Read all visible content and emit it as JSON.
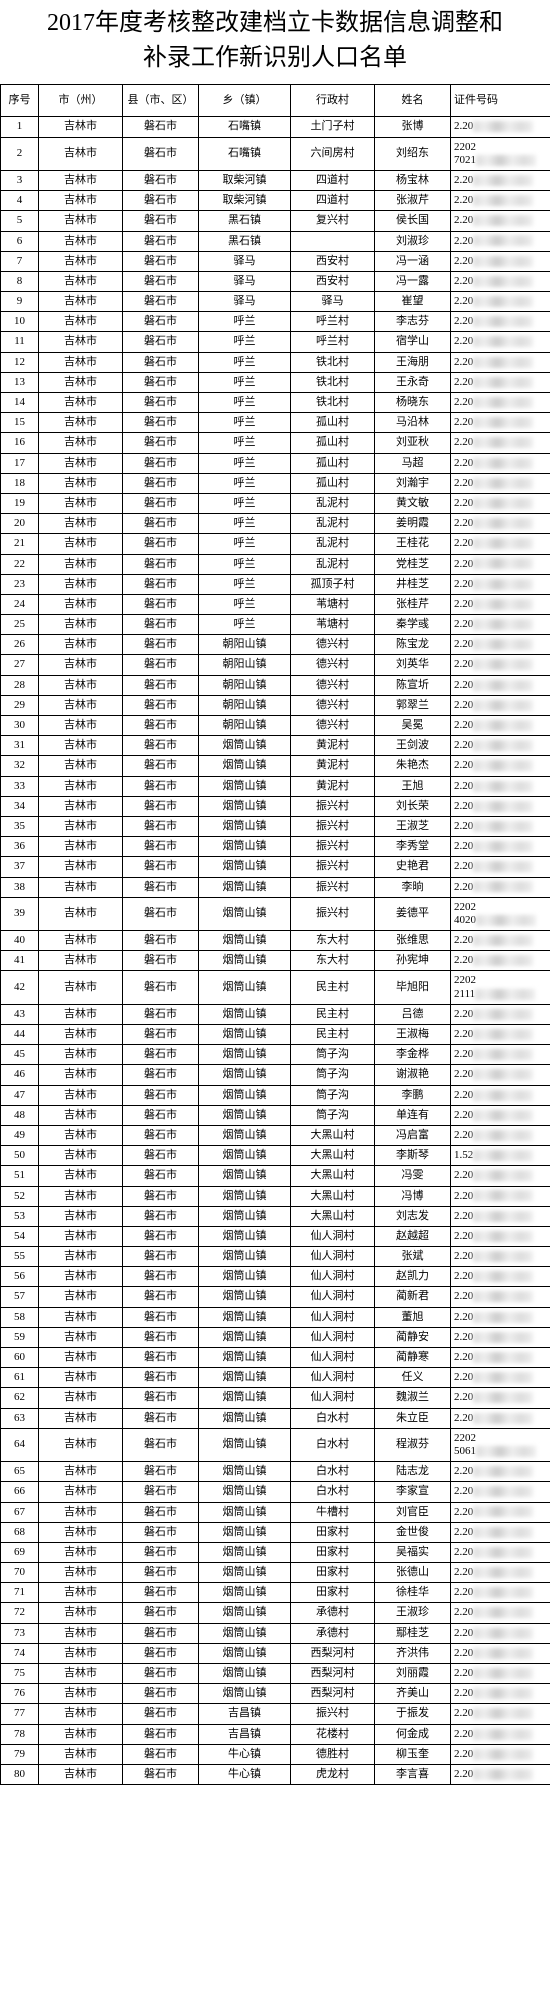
{
  "title_line1": "2017年度考核整改建档立卡数据信息调整和",
  "title_line2": "补录工作新识别人口名单",
  "headers": [
    "序号",
    "市（州）",
    "县（市、区）",
    "乡（镇）",
    "行政村",
    "姓名",
    "证件号码"
  ],
  "id_prefix_default": "2.20",
  "rows": [
    {
      "n": 1,
      "c": "吉林市",
      "x": "磐石市",
      "t": "石嘴镇",
      "v": "土门子村",
      "m": "张博",
      "i": "2.20"
    },
    {
      "n": 2,
      "c": "吉林市",
      "x": "磐石市",
      "t": "石嘴镇",
      "v": "六间房村",
      "m": "刘绍东",
      "i": "2202\n7021",
      "tall": true
    },
    {
      "n": 3,
      "c": "吉林市",
      "x": "磐石市",
      "t": "取柴河镇",
      "v": "四道村",
      "m": "杨宝林",
      "i": "2.20"
    },
    {
      "n": 4,
      "c": "吉林市",
      "x": "磐石市",
      "t": "取柴河镇",
      "v": "四道村",
      "m": "张淑芹",
      "i": "2.20"
    },
    {
      "n": 5,
      "c": "吉林市",
      "x": "磐石市",
      "t": "黑石镇",
      "v": "复兴村",
      "m": "侯长国",
      "i": "2.20"
    },
    {
      "n": 6,
      "c": "吉林市",
      "x": "磐石市",
      "t": "黑石镇",
      "v": "",
      "m": "刘淑珍",
      "i": "2.20"
    },
    {
      "n": 7,
      "c": "吉林市",
      "x": "磐石市",
      "t": "驿马",
      "v": "西安村",
      "m": "冯一涵",
      "i": "2.20"
    },
    {
      "n": 8,
      "c": "吉林市",
      "x": "磐石市",
      "t": "驿马",
      "v": "西安村",
      "m": "冯一露",
      "i": "2.20"
    },
    {
      "n": 9,
      "c": "吉林市",
      "x": "磐石市",
      "t": "驿马",
      "v": "驿马",
      "m": "崔望",
      "i": "2.20"
    },
    {
      "n": 10,
      "c": "吉林市",
      "x": "磐石市",
      "t": "呼兰",
      "v": "呼兰村",
      "m": "李志芬",
      "i": "2.20"
    },
    {
      "n": 11,
      "c": "吉林市",
      "x": "磐石市",
      "t": "呼兰",
      "v": "呼兰村",
      "m": "宿学山",
      "i": "2.20"
    },
    {
      "n": 12,
      "c": "吉林市",
      "x": "磐石市",
      "t": "呼兰",
      "v": "铁北村",
      "m": "王海朋",
      "i": "2.20"
    },
    {
      "n": 13,
      "c": "吉林市",
      "x": "磐石市",
      "t": "呼兰",
      "v": "铁北村",
      "m": "王永奇",
      "i": "2.20"
    },
    {
      "n": 14,
      "c": "吉林市",
      "x": "磐石市",
      "t": "呼兰",
      "v": "铁北村",
      "m": "杨晓东",
      "i": "2.20"
    },
    {
      "n": 15,
      "c": "吉林市",
      "x": "磐石市",
      "t": "呼兰",
      "v": "孤山村",
      "m": "马沿林",
      "i": "2.20"
    },
    {
      "n": 16,
      "c": "吉林市",
      "x": "磐石市",
      "t": "呼兰",
      "v": "孤山村",
      "m": "刘亚秋",
      "i": "2.20"
    },
    {
      "n": 17,
      "c": "吉林市",
      "x": "磐石市",
      "t": "呼兰",
      "v": "孤山村",
      "m": "马超",
      "i": "2.20"
    },
    {
      "n": 18,
      "c": "吉林市",
      "x": "磐石市",
      "t": "呼兰",
      "v": "孤山村",
      "m": "刘瀚宇",
      "i": "2.20"
    },
    {
      "n": 19,
      "c": "吉林市",
      "x": "磐石市",
      "t": "呼兰",
      "v": "乱泥村",
      "m": "黄文敏",
      "i": "2.20"
    },
    {
      "n": 20,
      "c": "吉林市",
      "x": "磐石市",
      "t": "呼兰",
      "v": "乱泥村",
      "m": "姜明霞",
      "i": "2.20"
    },
    {
      "n": 21,
      "c": "吉林市",
      "x": "磐石市",
      "t": "呼兰",
      "v": "乱泥村",
      "m": "王桂花",
      "i": "2.20"
    },
    {
      "n": 22,
      "c": "吉林市",
      "x": "磐石市",
      "t": "呼兰",
      "v": "乱泥村",
      "m": "党桂芝",
      "i": "2.20"
    },
    {
      "n": 23,
      "c": "吉林市",
      "x": "磐石市",
      "t": "呼兰",
      "v": "孤顶子村",
      "m": "井桂芝",
      "i": "2.20"
    },
    {
      "n": 24,
      "c": "吉林市",
      "x": "磐石市",
      "t": "呼兰",
      "v": "苇塘村",
      "m": "张桂芹",
      "i": "2.20"
    },
    {
      "n": 25,
      "c": "吉林市",
      "x": "磐石市",
      "t": "呼兰",
      "v": "苇塘村",
      "m": "秦学彧",
      "i": "2.20"
    },
    {
      "n": 26,
      "c": "吉林市",
      "x": "磐石市",
      "t": "朝阳山镇",
      "v": "德兴村",
      "m": "陈宝龙",
      "i": "2.20"
    },
    {
      "n": 27,
      "c": "吉林市",
      "x": "磐石市",
      "t": "朝阳山镇",
      "v": "德兴村",
      "m": "刘英华",
      "i": "2.20"
    },
    {
      "n": 28,
      "c": "吉林市",
      "x": "磐石市",
      "t": "朝阳山镇",
      "v": "德兴村",
      "m": "陈宣圻",
      "i": "2.20"
    },
    {
      "n": 29,
      "c": "吉林市",
      "x": "磐石市",
      "t": "朝阳山镇",
      "v": "德兴村",
      "m": "郭翠兰",
      "i": "2.20"
    },
    {
      "n": 30,
      "c": "吉林市",
      "x": "磐石市",
      "t": "朝阳山镇",
      "v": "德兴村",
      "m": "吴冕",
      "i": "2.20"
    },
    {
      "n": 31,
      "c": "吉林市",
      "x": "磐石市",
      "t": "烟筒山镇",
      "v": "黄泥村",
      "m": "王剑波",
      "i": "2.20"
    },
    {
      "n": 32,
      "c": "吉林市",
      "x": "磐石市",
      "t": "烟筒山镇",
      "v": "黄泥村",
      "m": "朱艳杰",
      "i": "2.20"
    },
    {
      "n": 33,
      "c": "吉林市",
      "x": "磐石市",
      "t": "烟筒山镇",
      "v": "黄泥村",
      "m": "王旭",
      "i": "2.20"
    },
    {
      "n": 34,
      "c": "吉林市",
      "x": "磐石市",
      "t": "烟筒山镇",
      "v": "振兴村",
      "m": "刘长荣",
      "i": "2.20"
    },
    {
      "n": 35,
      "c": "吉林市",
      "x": "磐石市",
      "t": "烟筒山镇",
      "v": "振兴村",
      "m": "王淑芝",
      "i": "2.20"
    },
    {
      "n": 36,
      "c": "吉林市",
      "x": "磐石市",
      "t": "烟筒山镇",
      "v": "振兴村",
      "m": "李秀堂",
      "i": "2.20"
    },
    {
      "n": 37,
      "c": "吉林市",
      "x": "磐石市",
      "t": "烟筒山镇",
      "v": "振兴村",
      "m": "史艳君",
      "i": "2.20"
    },
    {
      "n": 38,
      "c": "吉林市",
      "x": "磐石市",
      "t": "烟筒山镇",
      "v": "振兴村",
      "m": "李晌",
      "i": "2.20"
    },
    {
      "n": 39,
      "c": "吉林市",
      "x": "磐石市",
      "t": "烟筒山镇",
      "v": "振兴村",
      "m": "姜德平",
      "i": "2202\n4020",
      "tall": true
    },
    {
      "n": 40,
      "c": "吉林市",
      "x": "磐石市",
      "t": "烟筒山镇",
      "v": "东大村",
      "m": "张维思",
      "i": "2.20"
    },
    {
      "n": 41,
      "c": "吉林市",
      "x": "磐石市",
      "t": "烟筒山镇",
      "v": "东大村",
      "m": "孙宪坤",
      "i": "2.20"
    },
    {
      "n": 42,
      "c": "吉林市",
      "x": "磐石市",
      "t": "烟筒山镇",
      "v": "民主村",
      "m": "毕旭阳",
      "i": "2202\n2111",
      "tall": true
    },
    {
      "n": 43,
      "c": "吉林市",
      "x": "磐石市",
      "t": "烟筒山镇",
      "v": "民主村",
      "m": "吕德",
      "i": "2.20"
    },
    {
      "n": 44,
      "c": "吉林市",
      "x": "磐石市",
      "t": "烟筒山镇",
      "v": "民主村",
      "m": "王淑梅",
      "i": "2.20"
    },
    {
      "n": 45,
      "c": "吉林市",
      "x": "磐石市",
      "t": "烟筒山镇",
      "v": "筒子沟",
      "m": "李金桦",
      "i": "2.20"
    },
    {
      "n": 46,
      "c": "吉林市",
      "x": "磐石市",
      "t": "烟筒山镇",
      "v": "筒子沟",
      "m": "谢淑艳",
      "i": "2.20"
    },
    {
      "n": 47,
      "c": "吉林市",
      "x": "磐石市",
      "t": "烟筒山镇",
      "v": "筒子沟",
      "m": "李鹏",
      "i": "2.20"
    },
    {
      "n": 48,
      "c": "吉林市",
      "x": "磐石市",
      "t": "烟筒山镇",
      "v": "筒子沟",
      "m": "单连有",
      "i": "2.20"
    },
    {
      "n": 49,
      "c": "吉林市",
      "x": "磐石市",
      "t": "烟筒山镇",
      "v": "大黑山村",
      "m": "冯启富",
      "i": "2.20"
    },
    {
      "n": 50,
      "c": "吉林市",
      "x": "磐石市",
      "t": "烟筒山镇",
      "v": "大黑山村",
      "m": "李斯琴",
      "i": "1.52"
    },
    {
      "n": 51,
      "c": "吉林市",
      "x": "磐石市",
      "t": "烟筒山镇",
      "v": "大黑山村",
      "m": "冯雯",
      "i": "2.20"
    },
    {
      "n": 52,
      "c": "吉林市",
      "x": "磐石市",
      "t": "烟筒山镇",
      "v": "大黑山村",
      "m": "冯博",
      "i": "2.20"
    },
    {
      "n": 53,
      "c": "吉林市",
      "x": "磐石市",
      "t": "烟筒山镇",
      "v": "大黑山村",
      "m": "刘志发",
      "i": "2.20"
    },
    {
      "n": 54,
      "c": "吉林市",
      "x": "磐石市",
      "t": "烟筒山镇",
      "v": "仙人洞村",
      "m": "赵越超",
      "i": "2.20"
    },
    {
      "n": 55,
      "c": "吉林市",
      "x": "磐石市",
      "t": "烟筒山镇",
      "v": "仙人洞村",
      "m": "张斌",
      "i": "2.20"
    },
    {
      "n": 56,
      "c": "吉林市",
      "x": "磐石市",
      "t": "烟筒山镇",
      "v": "仙人洞村",
      "m": "赵凯力",
      "i": "2.20"
    },
    {
      "n": 57,
      "c": "吉林市",
      "x": "磐石市",
      "t": "烟筒山镇",
      "v": "仙人洞村",
      "m": "蔺新君",
      "i": "2.20"
    },
    {
      "n": 58,
      "c": "吉林市",
      "x": "磐石市",
      "t": "烟筒山镇",
      "v": "仙人洞村",
      "m": "董旭",
      "i": "2.20"
    },
    {
      "n": 59,
      "c": "吉林市",
      "x": "磐石市",
      "t": "烟筒山镇",
      "v": "仙人洞村",
      "m": "蔺静安",
      "i": "2.20"
    },
    {
      "n": 60,
      "c": "吉林市",
      "x": "磐石市",
      "t": "烟筒山镇",
      "v": "仙人洞村",
      "m": "蔺静寒",
      "i": "2.20"
    },
    {
      "n": 61,
      "c": "吉林市",
      "x": "磐石市",
      "t": "烟筒山镇",
      "v": "仙人洞村",
      "m": "任义",
      "i": "2.20"
    },
    {
      "n": 62,
      "c": "吉林市",
      "x": "磐石市",
      "t": "烟筒山镇",
      "v": "仙人洞村",
      "m": "魏淑兰",
      "i": "2.20"
    },
    {
      "n": 63,
      "c": "吉林市",
      "x": "磐石市",
      "t": "烟筒山镇",
      "v": "白水村",
      "m": "朱立臣",
      "i": "2.20"
    },
    {
      "n": 64,
      "c": "吉林市",
      "x": "磐石市",
      "t": "烟筒山镇",
      "v": "白水村",
      "m": "程淑芬",
      "i": "2202\n5061",
      "tall": true
    },
    {
      "n": 65,
      "c": "吉林市",
      "x": "磐石市",
      "t": "烟筒山镇",
      "v": "白水村",
      "m": "陆志龙",
      "i": "2.20"
    },
    {
      "n": 66,
      "c": "吉林市",
      "x": "磐石市",
      "t": "烟筒山镇",
      "v": "白水村",
      "m": "李家宣",
      "i": "2.20"
    },
    {
      "n": 67,
      "c": "吉林市",
      "x": "磐石市",
      "t": "烟筒山镇",
      "v": "牛槽村",
      "m": "刘官臣",
      "i": "2.20"
    },
    {
      "n": 68,
      "c": "吉林市",
      "x": "磐石市",
      "t": "烟筒山镇",
      "v": "田家村",
      "m": "金世俊",
      "i": "2.20"
    },
    {
      "n": 69,
      "c": "吉林市",
      "x": "磐石市",
      "t": "烟筒山镇",
      "v": "田家村",
      "m": "吴福实",
      "i": "2.20"
    },
    {
      "n": 70,
      "c": "吉林市",
      "x": "磐石市",
      "t": "烟筒山镇",
      "v": "田家村",
      "m": "张德山",
      "i": "2.20"
    },
    {
      "n": 71,
      "c": "吉林市",
      "x": "磐石市",
      "t": "烟筒山镇",
      "v": "田家村",
      "m": "徐桂华",
      "i": "2.20"
    },
    {
      "n": 72,
      "c": "吉林市",
      "x": "磐石市",
      "t": "烟筒山镇",
      "v": "承德村",
      "m": "王淑珍",
      "i": "2.20"
    },
    {
      "n": 73,
      "c": "吉林市",
      "x": "磐石市",
      "t": "烟筒山镇",
      "v": "承德村",
      "m": "鄢桂芝",
      "i": "2.20"
    },
    {
      "n": 74,
      "c": "吉林市",
      "x": "磐石市",
      "t": "烟筒山镇",
      "v": "西梨河村",
      "m": "齐洪伟",
      "i": "2.20"
    },
    {
      "n": 75,
      "c": "吉林市",
      "x": "磐石市",
      "t": "烟筒山镇",
      "v": "西梨河村",
      "m": "刘丽霞",
      "i": "2.20"
    },
    {
      "n": 76,
      "c": "吉林市",
      "x": "磐石市",
      "t": "烟筒山镇",
      "v": "西梨河村",
      "m": "齐美山",
      "i": "2.20"
    },
    {
      "n": 77,
      "c": "吉林市",
      "x": "磐石市",
      "t": "吉昌镇",
      "v": "振兴村",
      "m": "于振发",
      "i": "2.20"
    },
    {
      "n": 78,
      "c": "吉林市",
      "x": "磐石市",
      "t": "吉昌镇",
      "v": "花楼村",
      "m": "何金成",
      "i": "2.20"
    },
    {
      "n": 79,
      "c": "吉林市",
      "x": "磐石市",
      "t": "牛心镇",
      "v": "德胜村",
      "m": "柳玉奎",
      "i": "2.20"
    },
    {
      "n": 80,
      "c": "吉林市",
      "x": "磐石市",
      "t": "牛心镇",
      "v": "虎龙村",
      "m": "李言喜",
      "i": "2.20"
    }
  ]
}
